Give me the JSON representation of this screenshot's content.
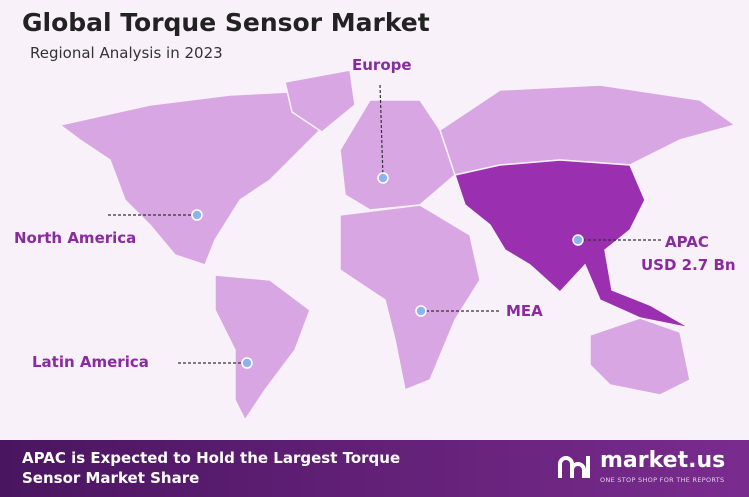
{
  "header": {
    "title": "Global Torque Sensor Market",
    "subtitle": "Regional Analysis in 2023"
  },
  "regions": [
    {
      "label": "Europe"
    },
    {
      "label": "North America"
    },
    {
      "label": "APAC",
      "value": "USD 2.7 Bn"
    },
    {
      "label": "MEA"
    },
    {
      "label": "Latin America"
    }
  ],
  "footer": {
    "text": "APAC is Expected to Hold the Largest Torque Sensor Market Share",
    "brand": "market.us",
    "tagline": "ONE STOP SHOP FOR THE REPORTS"
  }
}
